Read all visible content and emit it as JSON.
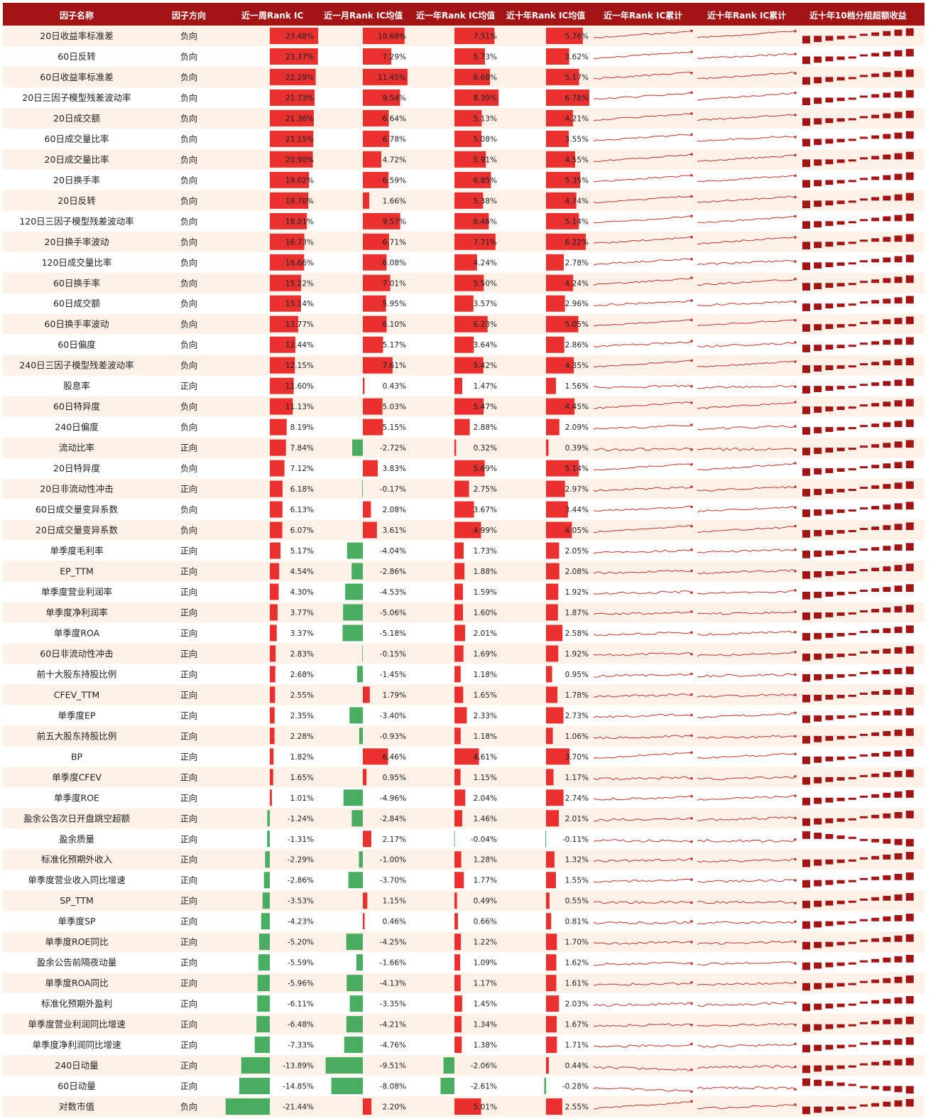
{
  "colors": {
    "header_bg": "#a31515",
    "header_text": "#ffffff",
    "row_alt": "#fdf1e8",
    "positive_bar": "#e8201e",
    "negative_bar": "#3aa655",
    "sparkline": "#c8312b",
    "decile_bar": "#a31515"
  },
  "headers": {
    "name": "因子名称",
    "direction": "因子方向",
    "week": "近一周Rank IC",
    "month": "近一月Rank IC均值",
    "year": "近一年Rank IC均值",
    "decade": "近十年Rank IC均值",
    "cum_year": "近一年Rank IC累计",
    "cum_decade": "近十年Rank IC累计",
    "decile": "近十年10档分组超额收益"
  },
  "chart_data": {
    "type": "table",
    "columns": [
      "因子名称",
      "因子方向",
      "近一周Rank IC",
      "近一月Rank IC均值",
      "近一年Rank IC均值",
      "近十年Rank IC均值",
      "近一年Rank IC累计",
      "近十年Rank IC累计",
      "近十年10档分组超额收益"
    ],
    "rows": [
      {
        "name": "20日收益率标准差",
        "dir": "负向",
        "week": "23.48%",
        "month": "10.68%",
        "year": "7.51%",
        "decade": "5.76%"
      },
      {
        "name": "60日反转",
        "dir": "负向",
        "week": "23.37%",
        "month": "7.29%",
        "year": "5.73%",
        "decade": "3.62%"
      },
      {
        "name": "60日收益率标准差",
        "dir": "负向",
        "week": "22.29%",
        "month": "11.45%",
        "year": "6.68%",
        "decade": "5.17%"
      },
      {
        "name": "20日三因子模型残差波动率",
        "dir": "负向",
        "week": "21.73%",
        "month": "9.54%",
        "year": "8.30%",
        "decade": "6.78%"
      },
      {
        "name": "20日成交额",
        "dir": "负向",
        "week": "21.36%",
        "month": "6.64%",
        "year": "5.13%",
        "decade": "4.21%"
      },
      {
        "name": "60日成交量比率",
        "dir": "负向",
        "week": "21.15%",
        "month": "6.78%",
        "year": "5.08%",
        "decade": "3.55%"
      },
      {
        "name": "20日成交量比率",
        "dir": "负向",
        "week": "20.90%",
        "month": "4.72%",
        "year": "5.91%",
        "decade": "4.55%"
      },
      {
        "name": "20日换手率",
        "dir": "负向",
        "week": "19.02%",
        "month": "6.59%",
        "year": "6.85%",
        "decade": "5.35%"
      },
      {
        "name": "20日反转",
        "dir": "负向",
        "week": "18.70%",
        "month": "1.66%",
        "year": "5.38%",
        "decade": "4.74%"
      },
      {
        "name": "120日三因子模型残差波动率",
        "dir": "负向",
        "week": "18.01%",
        "month": "9.57%",
        "year": "6.46%",
        "decade": "5.14%"
      },
      {
        "name": "20日换手率波动",
        "dir": "负向",
        "week": "16.73%",
        "month": "6.71%",
        "year": "7.71%",
        "decade": "6.22%"
      },
      {
        "name": "120日成交量比率",
        "dir": "负向",
        "week": "16.66%",
        "month": "6.08%",
        "year": "4.24%",
        "decade": "2.78%"
      },
      {
        "name": "60日换手率",
        "dir": "负向",
        "week": "15.22%",
        "month": "7.01%",
        "year": "5.50%",
        "decade": "4.24%"
      },
      {
        "name": "60日成交额",
        "dir": "负向",
        "week": "15.14%",
        "month": "5.95%",
        "year": "3.57%",
        "decade": "2.96%"
      },
      {
        "name": "60日换手率波动",
        "dir": "负向",
        "week": "13.77%",
        "month": "6.10%",
        "year": "6.23%",
        "decade": "5.05%"
      },
      {
        "name": "60日偏度",
        "dir": "负向",
        "week": "12.44%",
        "month": "5.17%",
        "year": "3.64%",
        "decade": "2.86%"
      },
      {
        "name": "240日三因子模型残差波动率",
        "dir": "负向",
        "week": "12.15%",
        "month": "7.61%",
        "year": "5.42%",
        "decade": "4.35%"
      },
      {
        "name": "股息率",
        "dir": "正向",
        "week": "11.60%",
        "month": "0.43%",
        "year": "1.47%",
        "decade": "1.56%"
      },
      {
        "name": "60日特异度",
        "dir": "负向",
        "week": "11.13%",
        "month": "5.03%",
        "year": "5.47%",
        "decade": "4.45%"
      },
      {
        "name": "240日偏度",
        "dir": "负向",
        "week": "8.19%",
        "month": "5.15%",
        "year": "2.88%",
        "decade": "2.09%"
      },
      {
        "name": "流动比率",
        "dir": "正向",
        "week": "7.84%",
        "month": "-2.72%",
        "year": "0.32%",
        "decade": "0.39%"
      },
      {
        "name": "20日特异度",
        "dir": "负向",
        "week": "7.12%",
        "month": "3.83%",
        "year": "5.69%",
        "decade": "5.14%"
      },
      {
        "name": "20日非流动性冲击",
        "dir": "正向",
        "week": "6.18%",
        "month": "-0.17%",
        "year": "2.75%",
        "decade": "2.97%"
      },
      {
        "name": "60日成交量变异系数",
        "dir": "负向",
        "week": "6.13%",
        "month": "2.08%",
        "year": "3.67%",
        "decade": "3.44%"
      },
      {
        "name": "20日成交量变异系数",
        "dir": "负向",
        "week": "6.07%",
        "month": "3.61%",
        "year": "4.99%",
        "decade": "4.05%"
      },
      {
        "name": "单季度毛利率",
        "dir": "正向",
        "week": "5.17%",
        "month": "-4.04%",
        "year": "1.73%",
        "decade": "2.05%"
      },
      {
        "name": "EP_TTM",
        "dir": "正向",
        "week": "4.54%",
        "month": "-2.86%",
        "year": "1.88%",
        "decade": "2.08%"
      },
      {
        "name": "单季度营业利润率",
        "dir": "正向",
        "week": "4.30%",
        "month": "-4.53%",
        "year": "1.59%",
        "decade": "1.92%"
      },
      {
        "name": "单季度净利润率",
        "dir": "正向",
        "week": "3.77%",
        "month": "-5.06%",
        "year": "1.60%",
        "decade": "1.87%"
      },
      {
        "name": "单季度ROA",
        "dir": "正向",
        "week": "3.37%",
        "month": "-5.18%",
        "year": "2.01%",
        "decade": "2.58%"
      },
      {
        "name": "60日非流动性冲击",
        "dir": "正向",
        "week": "2.83%",
        "month": "-0.15%",
        "year": "1.69%",
        "decade": "1.92%"
      },
      {
        "name": "前十大股东持股比例",
        "dir": "正向",
        "week": "2.68%",
        "month": "-1.45%",
        "year": "1.18%",
        "decade": "0.95%"
      },
      {
        "name": "CFEV_TTM",
        "dir": "正向",
        "week": "2.55%",
        "month": "1.79%",
        "year": "1.65%",
        "decade": "1.78%"
      },
      {
        "name": "单季度EP",
        "dir": "正向",
        "week": "2.35%",
        "month": "-3.40%",
        "year": "2.33%",
        "decade": "2.73%"
      },
      {
        "name": "前五大股东持股比例",
        "dir": "正向",
        "week": "2.28%",
        "month": "-0.93%",
        "year": "1.18%",
        "decade": "1.06%"
      },
      {
        "name": "BP",
        "dir": "正向",
        "week": "1.82%",
        "month": "6.46%",
        "year": "4.61%",
        "decade": "3.70%"
      },
      {
        "name": "单季度CFEV",
        "dir": "正向",
        "week": "1.65%",
        "month": "0.95%",
        "year": "1.15%",
        "decade": "1.17%"
      },
      {
        "name": "单季度ROE",
        "dir": "正向",
        "week": "1.01%",
        "month": "-4.96%",
        "year": "2.04%",
        "decade": "2.74%"
      },
      {
        "name": "盈余公告次日开盘跳空超额",
        "dir": "正向",
        "week": "-1.24%",
        "month": "-2.84%",
        "year": "1.46%",
        "decade": "2.01%"
      },
      {
        "name": "盈余质量",
        "dir": "正向",
        "week": "-1.31%",
        "month": "2.17%",
        "year": "-0.04%",
        "decade": "-0.11%"
      },
      {
        "name": "标准化预期外收入",
        "dir": "正向",
        "week": "-2.29%",
        "month": "-1.00%",
        "year": "1.28%",
        "decade": "1.32%"
      },
      {
        "name": "单季度营业收入同比增速",
        "dir": "正向",
        "week": "-2.86%",
        "month": "-3.70%",
        "year": "1.77%",
        "decade": "1.55%"
      },
      {
        "name": "SP_TTM",
        "dir": "正向",
        "week": "-3.53%",
        "month": "1.15%",
        "year": "0.49%",
        "decade": "0.55%"
      },
      {
        "name": "单季度SP",
        "dir": "正向",
        "week": "-4.23%",
        "month": "0.46%",
        "year": "0.66%",
        "decade": "0.81%"
      },
      {
        "name": "单季度ROE同比",
        "dir": "正向",
        "week": "-5.20%",
        "month": "-4.25%",
        "year": "1.22%",
        "decade": "1.70%"
      },
      {
        "name": "盈余公告前隔夜动量",
        "dir": "正向",
        "week": "-5.59%",
        "month": "-1.66%",
        "year": "1.09%",
        "decade": "1.62%"
      },
      {
        "name": "单季度ROA同比",
        "dir": "正向",
        "week": "-5.96%",
        "month": "-4.13%",
        "year": "1.17%",
        "decade": "1.61%"
      },
      {
        "name": "标准化预期外盈利",
        "dir": "正向",
        "week": "-6.11%",
        "month": "-3.35%",
        "year": "1.45%",
        "decade": "2.03%"
      },
      {
        "name": "单季度营业利润同比增速",
        "dir": "正向",
        "week": "-6.48%",
        "month": "-4.21%",
        "year": "1.34%",
        "decade": "1.67%"
      },
      {
        "name": "单季度净利润同比增速",
        "dir": "正向",
        "week": "-7.33%",
        "month": "-4.76%",
        "year": "1.38%",
        "decade": "1.71%"
      },
      {
        "name": "240日动量",
        "dir": "正向",
        "week": "-13.89%",
        "month": "-9.51%",
        "year": "-2.06%",
        "decade": "0.44%"
      },
      {
        "name": "60日动量",
        "dir": "正向",
        "week": "-14.85%",
        "month": "-8.08%",
        "year": "-2.61%",
        "decade": "-0.28%"
      },
      {
        "name": "对数市值",
        "dir": "负向",
        "week": "-21.44%",
        "month": "2.20%",
        "year": "5.01%",
        "decade": "2.55%"
      }
    ]
  }
}
